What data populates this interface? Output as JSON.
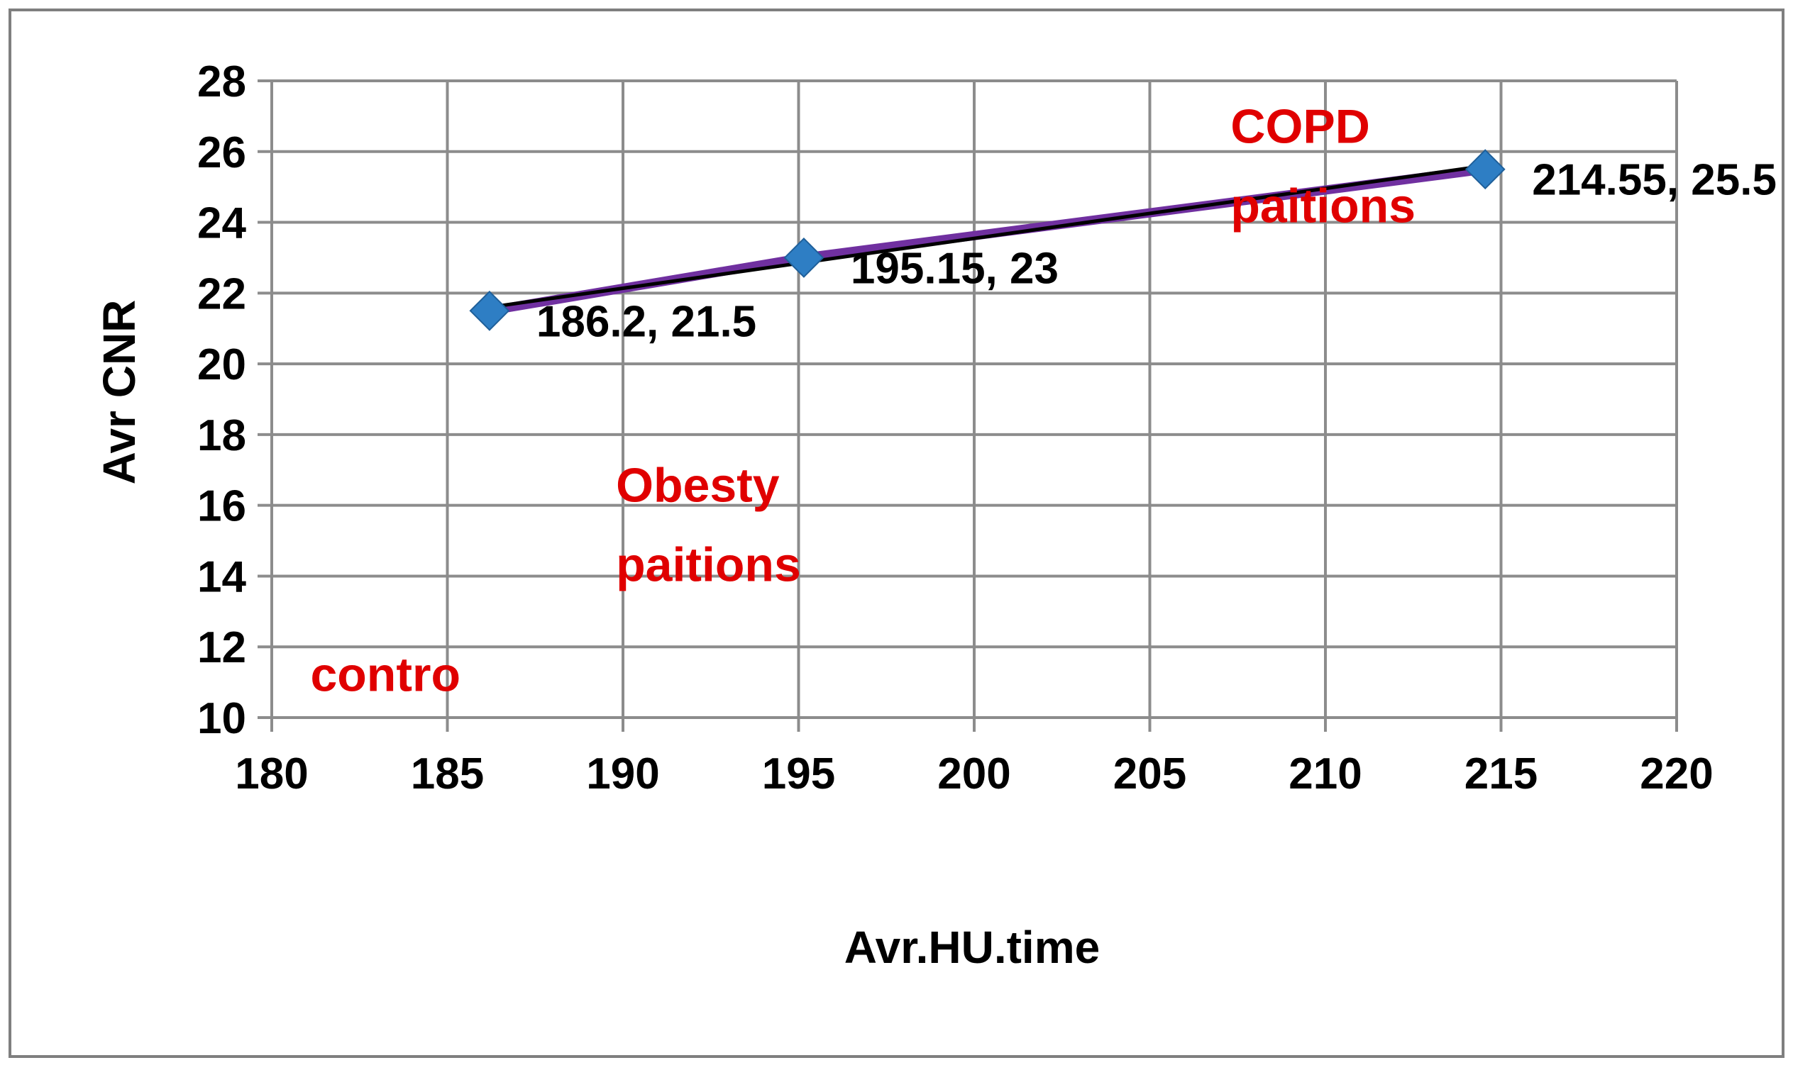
{
  "chart_data": {
    "type": "scatter",
    "title": "",
    "xlabel": "Avr.HU.time",
    "ylabel": "Avr CNR",
    "xlim": [
      180,
      220
    ],
    "ylim": [
      10,
      28
    ],
    "x_ticks": [
      "180",
      "185",
      "190",
      "195",
      "200",
      "205",
      "210",
      "215",
      "220"
    ],
    "y_ticks": [
      "10",
      "12",
      "14",
      "16",
      "18",
      "20",
      "22",
      "24",
      "26",
      "28"
    ],
    "grid": true,
    "legend": "none",
    "series": [
      {
        "points": [
          {
            "x": 186.2,
            "y": 21.5,
            "label": "186.2, 21.5"
          },
          {
            "x": 195.15,
            "y": 23,
            "label": "195.15, 23"
          },
          {
            "x": 214.55,
            "y": 25.5,
            "label": "214.55, 25.5"
          }
        ],
        "marker": "diamond",
        "marker_color": "#2E7EC4",
        "line_color": "#7030A0"
      }
    ],
    "trendline": {
      "color": "#000000",
      "from": {
        "x": 186.2,
        "y": 21.6
      },
      "to": {
        "x": 214.55,
        "y": 25.6
      }
    },
    "annotations": [
      {
        "lines": [
          "COPD",
          "paitions"
        ],
        "x": 207.3,
        "y": 26.25,
        "color": "#E00000"
      },
      {
        "lines": [
          "Obesty",
          "paitions"
        ],
        "x": 189.8,
        "y": 16.1,
        "color": "#E00000"
      },
      {
        "lines": [
          "contro"
        ],
        "x": 181.1,
        "y": 10.75,
        "color": "#E00000"
      }
    ]
  }
}
